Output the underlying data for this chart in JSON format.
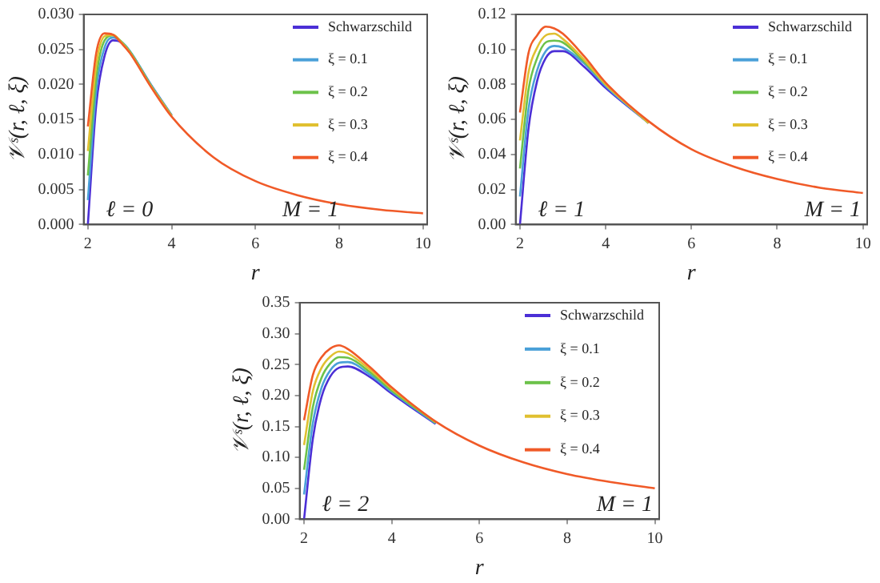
{
  "chart_data": [
    {
      "type": "line",
      "xlabel": "r",
      "ylabel": "𝒱ˢ(r, ℓ, ξ)",
      "annotations": [
        "ℓ = 0",
        "M = 1"
      ],
      "legend": "top right",
      "grid": false,
      "xlim": [
        1.9,
        10.1
      ],
      "xticks": [
        2,
        4,
        6,
        8,
        10
      ],
      "ylim": [
        0,
        0.03
      ],
      "yticks": [
        {
          "value": 0,
          "label": "0.000"
        },
        0.005,
        {
          "value": 0.01,
          "label": "0.010"
        },
        0.015,
        {
          "value": 0.02,
          "label": "0.020"
        },
        0.025,
        {
          "value": 0.03,
          "label": "0.030"
        }
      ],
      "x": [
        2,
        2.2,
        2.4,
        2.6,
        2.8,
        3,
        3.5,
        4,
        5,
        6,
        7,
        8,
        9,
        10
      ],
      "series": [
        {
          "name": "Schwarzschild",
          "color": "#4b2fd6",
          "values": [
            0,
            0.0171,
            0.0241,
            0.0263,
            0.026,
            0.0247,
            0.02,
            0.0156,
            null,
            null,
            null,
            null,
            null,
            null
          ]
        },
        {
          "name": "ξ = 0.1",
          "color": "#4aa0d8",
          "values": [
            0.0035,
            0.0191,
            0.0253,
            0.0267,
            0.0261,
            0.0248,
            0.02,
            0.0156,
            null,
            null,
            null,
            null,
            null,
            null
          ]
        },
        {
          "name": "ξ = 0.2",
          "color": "#6cc24a",
          "values": [
            0.007,
            0.021,
            0.0263,
            0.027,
            0.0261,
            0.0247,
            0.0199,
            0.0155,
            null,
            null,
            null,
            null,
            null,
            null
          ]
        },
        {
          "name": "ξ = 0.3",
          "color": "#e0c030",
          "values": [
            0.0105,
            0.0228,
            0.0269,
            0.0271,
            0.026,
            0.0246,
            0.0198,
            0.0155,
            null,
            null,
            null,
            null,
            null,
            null
          ]
        },
        {
          "name": "ξ = 0.4",
          "color": "#f05a28",
          "values": [
            0.014,
            0.0245,
            0.0273,
            0.0271,
            0.0259,
            0.0245,
            0.0197,
            0.0154,
            0.0096,
            0.0062,
            0.0042,
            0.0029,
            0.0021,
            0.0016
          ]
        }
      ]
    },
    {
      "type": "line",
      "xlabel": "r",
      "ylabel": "𝒱ˢ(r, ℓ, ξ)",
      "annotations": [
        "ℓ = 1",
        "M = 1"
      ],
      "legend": "top right",
      "grid": false,
      "xlim": [
        1.9,
        10.1
      ],
      "xticks": [
        2,
        4,
        6,
        8,
        10
      ],
      "ylim": [
        0,
        0.12
      ],
      "yticks": [
        {
          "value": 0,
          "label": "0.00"
        },
        0.02,
        0.04,
        0.06,
        0.08,
        {
          "value": 0.1,
          "label": "0.10"
        },
        0.12
      ],
      "x": [
        2,
        2.2,
        2.4,
        2.6,
        2.8,
        3,
        3.5,
        4,
        5,
        6,
        7,
        8,
        9,
        10
      ],
      "series": [
        {
          "name": "Schwarzschild",
          "color": "#4b2fd6",
          "values": [
            0,
            0.055,
            0.082,
            0.095,
            0.099,
            0.099,
            0.09,
            0.078,
            0.058,
            null,
            null,
            null,
            null,
            null
          ]
        },
        {
          "name": "ξ = 0.1",
          "color": "#4aa0d8",
          "values": [
            0.016,
            0.066,
            0.088,
            0.099,
            0.102,
            0.101,
            0.092,
            0.079,
            0.058,
            null,
            null,
            null,
            null,
            null
          ]
        },
        {
          "name": "ξ = 0.2",
          "color": "#6cc24a",
          "values": [
            0.032,
            0.077,
            0.095,
            0.104,
            0.105,
            0.104,
            0.093,
            0.08,
            0.058,
            null,
            null,
            null,
            null,
            null
          ]
        },
        {
          "name": "ξ = 0.3",
          "color": "#e0c030",
          "values": [
            0.048,
            0.087,
            0.101,
            0.108,
            0.109,
            0.106,
            0.094,
            0.08,
            0.058,
            null,
            null,
            null,
            null,
            null
          ]
        },
        {
          "name": "ξ = 0.4",
          "color": "#f05a28",
          "values": [
            0.064,
            0.098,
            0.108,
            0.113,
            0.112,
            0.109,
            0.096,
            0.081,
            0.059,
            0.043,
            0.033,
            0.026,
            0.021,
            0.018
          ]
        }
      ]
    },
    {
      "type": "line",
      "xlabel": "r",
      "ylabel": "𝒱ˢ(r, ℓ, ξ)",
      "annotations": [
        "ℓ = 2",
        "M = 1"
      ],
      "legend": "top right",
      "grid": false,
      "xlim": [
        1.9,
        10.1
      ],
      "xticks": [
        2,
        4,
        6,
        8,
        10
      ],
      "ylim": [
        0,
        0.35
      ],
      "yticks": [
        {
          "value": 0,
          "label": "0.00"
        },
        0.05,
        {
          "value": 0.1,
          "label": "0.10"
        },
        0.15,
        {
          "value": 0.2,
          "label": "0.20"
        },
        0.25,
        {
          "value": 0.3,
          "label": "0.30"
        },
        0.35
      ],
      "x": [
        2,
        2.2,
        2.4,
        2.6,
        2.8,
        3,
        3.5,
        4,
        5,
        6,
        7,
        8,
        9,
        10
      ],
      "series": [
        {
          "name": "Schwarzschild",
          "color": "#4b2fd6",
          "values": [
            0,
            0.13,
            0.198,
            0.231,
            0.245,
            0.247,
            0.23,
            0.203,
            0.154,
            null,
            null,
            null,
            null,
            null
          ]
        },
        {
          "name": "ξ = 0.1",
          "color": "#4aa0d8",
          "values": [
            0.04,
            0.155,
            0.213,
            0.241,
            0.253,
            0.254,
            0.234,
            0.206,
            0.155,
            null,
            null,
            null,
            null,
            null
          ]
        },
        {
          "name": "ξ = 0.2",
          "color": "#6cc24a",
          "values": [
            0.08,
            0.181,
            0.229,
            0.252,
            0.262,
            0.261,
            0.238,
            0.208,
            0.156,
            null,
            null,
            null,
            null,
            null
          ]
        },
        {
          "name": "ξ = 0.3",
          "color": "#e0c030",
          "values": [
            0.12,
            0.207,
            0.245,
            0.263,
            0.271,
            0.268,
            0.242,
            0.211,
            0.157,
            null,
            null,
            null,
            null,
            null
          ]
        },
        {
          "name": "ξ = 0.4",
          "color": "#f05a28",
          "values": [
            0.16,
            0.233,
            0.262,
            0.276,
            0.281,
            0.275,
            0.246,
            0.213,
            0.158,
            0.119,
            0.092,
            0.073,
            0.06,
            0.05
          ]
        }
      ]
    }
  ]
}
